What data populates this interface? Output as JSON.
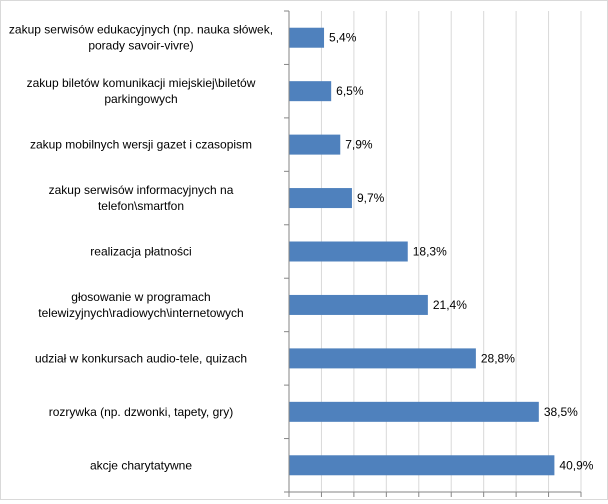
{
  "chart_data": {
    "type": "bar",
    "orientation": "horizontal",
    "categories": [
      [
        "zakup serwisów edukacyjnych (np. nauka słówek,",
        "porady savoir-vivre)"
      ],
      [
        "zakup biletów komunikacji miejskiej\\biletów",
        "parkingowych"
      ],
      [
        "zakup mobilnych wersji gazet i czasopism"
      ],
      [
        "zakup serwisów informacyjnych na",
        "telefon\\smartfon"
      ],
      [
        "realizacja płatności"
      ],
      [
        "głosowanie w programach",
        "telewizyjnych\\radiowych\\internetowych"
      ],
      [
        "udział w konkursach audio-tele, quizach"
      ],
      [
        "rozrywka (np. dzwonki, tapety, gry)"
      ],
      [
        "akcje charytatywne"
      ]
    ],
    "values": [
      5.4,
      6.5,
      7.9,
      9.7,
      18.3,
      21.4,
      28.8,
      38.5,
      40.9
    ],
    "data_labels": [
      "5,4%",
      "6,5%",
      "7,9%",
      "9,7%",
      "18,3%",
      "21,4%",
      "28,8%",
      "38,5%",
      "40,9%"
    ],
    "x_ticks": [
      "0%",
      "5%",
      "10%",
      "15%",
      "20%",
      "25%",
      "30%",
      "35%",
      "40%",
      "45%"
    ],
    "xlim": [
      0,
      45
    ],
    "grid": true,
    "legend": "none",
    "bar_color": "#4f81bd"
  }
}
